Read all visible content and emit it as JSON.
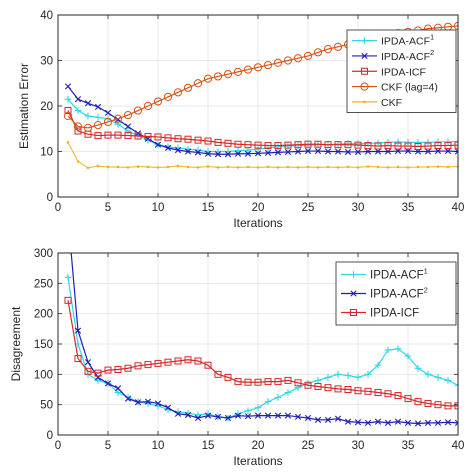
{
  "chart_data": [
    {
      "type": "line",
      "title": "",
      "xlabel": "Iterations",
      "ylabel": "Estimation Error",
      "xlim": [
        0,
        40
      ],
      "ylim": [
        0,
        40
      ],
      "xticks": [
        0,
        5,
        10,
        15,
        20,
        25,
        30,
        35,
        40
      ],
      "yticks": [
        0,
        10,
        20,
        30,
        40
      ],
      "legend_position": "top-right",
      "grid": true,
      "x": [
        1,
        2,
        3,
        4,
        5,
        6,
        7,
        8,
        9,
        10,
        11,
        12,
        13,
        14,
        15,
        16,
        17,
        18,
        19,
        20,
        21,
        22,
        23,
        24,
        25,
        26,
        27,
        28,
        29,
        30,
        31,
        32,
        33,
        34,
        35,
        36,
        37,
        38,
        39,
        40
      ],
      "series": [
        {
          "name": "IPDA-ACF",
          "sup": "1",
          "color": "#33d6e6",
          "marker": "plus",
          "values": [
            21.5,
            19,
            17.8,
            17.5,
            17.2,
            16,
            14.5,
            13.5,
            12.5,
            11.5,
            11,
            10.8,
            10.5,
            10.3,
            10,
            10,
            10,
            10.2,
            10.3,
            10.5,
            10.8,
            11,
            11.2,
            11.3,
            11.4,
            11.5,
            11.5,
            11.6,
            11.7,
            11.7,
            11.8,
            11.9,
            12,
            12.1,
            12,
            12,
            12,
            12.1,
            12.1,
            12.2
          ]
        },
        {
          "name": "IPDA-ACF",
          "sup": "2",
          "color": "#1f1fb4",
          "marker": "x",
          "values": [
            24.3,
            21.5,
            20.6,
            19.8,
            18.5,
            17,
            15.5,
            14,
            12.8,
            11.5,
            10.8,
            10.3,
            10,
            9.8,
            9.5,
            9.4,
            9.4,
            9.5,
            9.5,
            9.6,
            9.7,
            9.8,
            9.9,
            10,
            10.1,
            10.1,
            10,
            10,
            9.9,
            9.9,
            10,
            10,
            10,
            10.1,
            10.1,
            10,
            10,
            10.1,
            10.1,
            10
          ]
        },
        {
          "name": "IPDA-ICF",
          "sup": "",
          "color": "#d62728",
          "marker": "square",
          "values": [
            19,
            14.5,
            13.8,
            13.5,
            13.6,
            13.6,
            13.5,
            13.4,
            13.3,
            13.2,
            13,
            12.8,
            12.7,
            12.5,
            12.3,
            12,
            11.8,
            11.6,
            11.5,
            11.4,
            11.3,
            11.3,
            11.4,
            11.5,
            11.6,
            11.6,
            11.5,
            11.5,
            11.5,
            11.4,
            11.3,
            11.2,
            11.3,
            11.2,
            11.2,
            11.1,
            11.2,
            11.3,
            11.3,
            11.4
          ]
        },
        {
          "name": "CKF (lag=4)",
          "sup": "",
          "color": "#d95319",
          "marker": "circle",
          "values": [
            17.8,
            15.5,
            15.2,
            15.8,
            16.5,
            17.2,
            18,
            19,
            20,
            21,
            22,
            23,
            24,
            25,
            26,
            26.5,
            27,
            27.5,
            28,
            28.5,
            29,
            29.5,
            30,
            30.5,
            31,
            31.8,
            32.5,
            33,
            33.5,
            34,
            34.5,
            35,
            35.5,
            36,
            36.3,
            36.6,
            37,
            37.2,
            37.4,
            37.6
          ]
        },
        {
          "name": "CKF",
          "sup": "",
          "color": "#edb120",
          "marker": "dot",
          "values": [
            12,
            7.8,
            6.4,
            6.8,
            6.6,
            6.6,
            6.5,
            6.7,
            6.6,
            6.5,
            6.6,
            6.8,
            6.6,
            6.5,
            6.7,
            6.5,
            6.6,
            6.5,
            6.6,
            6.5,
            6.6,
            6.5,
            6.6,
            6.5,
            6.6,
            6.5,
            6.6,
            6.5,
            6.6,
            6.5,
            6.7,
            6.6,
            6.5,
            6.6,
            6.5,
            6.6,
            6.6,
            6.7,
            6.6,
            6.7
          ]
        }
      ]
    },
    {
      "type": "line",
      "title": "",
      "xlabel": "Iterations",
      "ylabel": "Disagreement",
      "xlim": [
        0,
        40
      ],
      "ylim": [
        0,
        300
      ],
      "xticks": [
        0,
        5,
        10,
        15,
        20,
        25,
        30,
        35,
        40
      ],
      "yticks": [
        0,
        50,
        100,
        150,
        200,
        250,
        300
      ],
      "legend_position": "top-right",
      "grid": true,
      "x": [
        1,
        2,
        3,
        4,
        5,
        6,
        7,
        8,
        9,
        10,
        11,
        12,
        13,
        14,
        15,
        16,
        17,
        18,
        19,
        20,
        21,
        22,
        23,
        24,
        25,
        26,
        27,
        28,
        29,
        30,
        31,
        32,
        33,
        34,
        35,
        36,
        37,
        38,
        39,
        40
      ],
      "series": [
        {
          "name": "IPDA-ACF",
          "sup": "1",
          "color": "#33d6e6",
          "marker": "plus",
          "values": [
            260,
            150,
            100,
            90,
            85,
            70,
            62,
            55,
            52,
            48,
            42,
            38,
            36,
            33,
            35,
            30,
            28,
            35,
            40,
            45,
            55,
            62,
            70,
            78,
            85,
            90,
            95,
            100,
            98,
            95,
            100,
            115,
            140,
            142,
            130,
            110,
            100,
            95,
            90,
            82
          ]
        },
        {
          "name": "IPDA-ACF",
          "sup": "2",
          "color": "#1f1fb4",
          "marker": "x",
          "values": [
            360,
            172,
            120,
            95,
            85,
            77,
            60,
            54,
            55,
            52,
            45,
            35,
            33,
            28,
            32,
            30,
            28,
            32,
            31,
            32,
            32,
            32,
            32,
            30,
            28,
            25,
            25,
            27,
            22,
            21,
            20,
            22,
            20,
            22,
            20,
            19,
            20,
            20,
            21,
            20
          ]
        },
        {
          "name": "IPDA-ICF",
          "sup": "",
          "color": "#d62728",
          "marker": "square",
          "values": [
            222,
            126,
            105,
            102,
            107,
            108,
            110,
            114,
            116,
            118,
            120,
            122,
            124,
            122,
            115,
            100,
            95,
            88,
            87,
            87,
            88,
            88,
            90,
            86,
            82,
            80,
            78,
            76,
            75,
            73,
            72,
            70,
            68,
            65,
            60,
            55,
            52,
            50,
            48,
            48
          ]
        }
      ]
    }
  ]
}
